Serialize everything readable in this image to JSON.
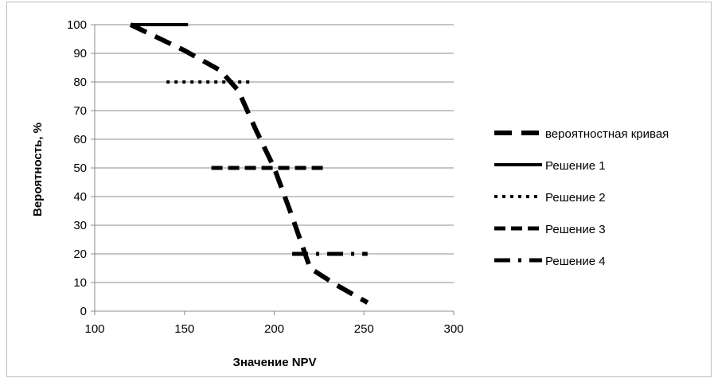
{
  "chart_data": {
    "type": "line",
    "xlabel": "Значение NPV",
    "ylabel": "Вероятность, %",
    "xlim": [
      100,
      300
    ],
    "ylim": [
      0,
      100
    ],
    "xticks": [
      100,
      150,
      200,
      250,
      300
    ],
    "yticks": [
      0,
      10,
      20,
      30,
      40,
      50,
      60,
      70,
      80,
      90,
      100
    ],
    "grid": "horizontal",
    "legend_position": "right",
    "series": [
      {
        "name": "вероятностная кривая",
        "style": "long-dash",
        "x": [
          120,
          150,
          170,
          180,
          190,
          200,
          210,
          220,
          235,
          252
        ],
        "y": [
          100,
          91,
          84,
          77,
          63,
          50,
          33,
          15,
          9,
          3
        ]
      },
      {
        "name": "Решение 1",
        "style": "solid",
        "x": [
          120,
          152
        ],
        "y": [
          100,
          100
        ]
      },
      {
        "name": "Решение 2",
        "style": "dotted",
        "x": [
          140,
          187
        ],
        "y": [
          80,
          80
        ]
      },
      {
        "name": "Решение 3",
        "style": "dashed",
        "x": [
          165,
          228
        ],
        "y": [
          50,
          50
        ]
      },
      {
        "name": "Решение 4",
        "style": "dash-dot",
        "x": [
          210,
          252
        ],
        "y": [
          20,
          20
        ]
      }
    ]
  }
}
